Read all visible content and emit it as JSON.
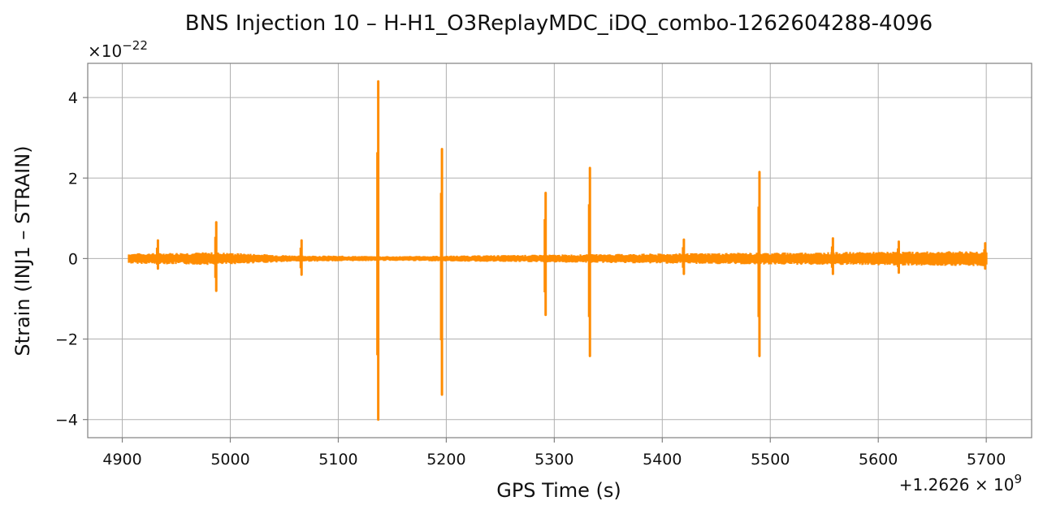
{
  "chart_data": {
    "type": "line",
    "title": "BNS Injection 10 – H-H1_O3ReplayMDC_iDQ_combo-1262604288-4096",
    "xlabel": "GPS Time (s)",
    "ylabel": "Strain (INJ1 – STRAIN)",
    "x_offset_label": "+1.2626 × 10",
    "x_offset_exponent": "9",
    "y_multiplier_label": "×10",
    "y_multiplier_exponent": "−22",
    "xlim": [
      4868,
      5742
    ],
    "ylim": [
      -4.45,
      4.85
    ],
    "x_ticks": [
      4900,
      5000,
      5100,
      5200,
      5300,
      5400,
      5500,
      5600,
      5700
    ],
    "x_tick_labels": [
      "4900",
      "5000",
      "5100",
      "5200",
      "5300",
      "5400",
      "5500",
      "5600",
      "5700"
    ],
    "y_ticks": [
      -4,
      -2,
      0,
      2,
      4
    ],
    "y_tick_labels": [
      "−4",
      "−2",
      "0",
      "2",
      "4"
    ],
    "grid": true,
    "series_color": "#ff8c00",
    "series": [
      {
        "x_range": [
          4906,
          5701
        ],
        "noise_envelope": [
          {
            "x": 4906,
            "amp": 0.13
          },
          {
            "x": 4985,
            "amp": 0.16
          },
          {
            "x": 5060,
            "amp": 0.08
          },
          {
            "x": 5150,
            "amp": 0.06
          },
          {
            "x": 5300,
            "amp": 0.1
          },
          {
            "x": 5450,
            "amp": 0.14
          },
          {
            "x": 5600,
            "amp": 0.17
          },
          {
            "x": 5701,
            "amp": 0.19
          }
        ],
        "spikes": [
          {
            "x": 4933,
            "max": 0.45,
            "min": -0.25
          },
          {
            "x": 4987,
            "max": 0.9,
            "min": -0.8
          },
          {
            "x": 5066,
            "max": 0.45,
            "min": -0.4
          },
          {
            "x": 5137,
            "max": 4.4,
            "min": -4.0
          },
          {
            "x": 5196,
            "max": 2.72,
            "min": -3.38
          },
          {
            "x": 5292,
            "max": 1.63,
            "min": -1.4
          },
          {
            "x": 5333,
            "max": 2.25,
            "min": -2.42
          },
          {
            "x": 5420,
            "max": 0.47,
            "min": -0.38
          },
          {
            "x": 5490,
            "max": 2.15,
            "min": -2.42
          },
          {
            "x": 5558,
            "max": 0.5,
            "min": -0.38
          },
          {
            "x": 5619,
            "max": 0.42,
            "min": -0.35
          },
          {
            "x": 5699,
            "max": 0.38,
            "min": -0.25
          }
        ]
      }
    ]
  }
}
